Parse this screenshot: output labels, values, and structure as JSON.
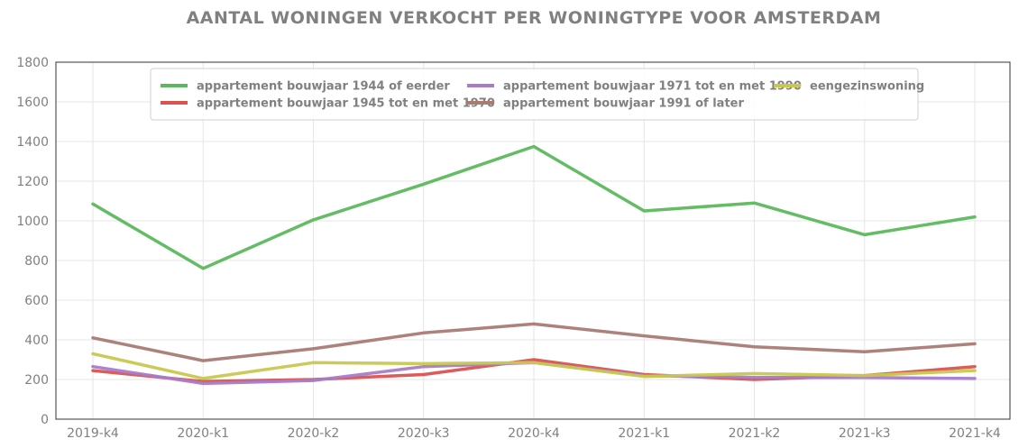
{
  "chart_data": {
    "type": "line",
    "title": "AANTAL WONINGEN VERKOCHT PER WONINGTYPE VOOR AMSTERDAM",
    "xlabel": "",
    "ylabel": "",
    "ylim": [
      0,
      1800
    ],
    "yticks": [
      "0",
      "200",
      "400",
      "600",
      "800",
      "1000",
      "1200",
      "1400",
      "1600",
      "1800"
    ],
    "categories": [
      "2019-k4",
      "2020-k1",
      "2020-k2",
      "2020-k3",
      "2020-k4",
      "2021-k1",
      "2021-k2",
      "2021-k3",
      "2021-k4"
    ],
    "grid": true,
    "legend_position": "top",
    "series": [
      {
        "name": "appartement bouwjaar 1944 of eerder",
        "color": "#5cb85c",
        "values": [
          1085,
          760,
          1005,
          1185,
          1375,
          1050,
          1090,
          930,
          1020
        ]
      },
      {
        "name": "appartement bouwjaar 1945 tot en met 1970",
        "color": "#d9534f",
        "values": [
          245,
          190,
          200,
          225,
          300,
          225,
          200,
          220,
          265
        ]
      },
      {
        "name": "appartement bouwjaar 1971 tot en met 1990",
        "color": "#a87cc9",
        "values": [
          265,
          180,
          195,
          265,
          285,
          220,
          210,
          210,
          205
        ]
      },
      {
        "name": "appartement bouwjaar 1991 of later",
        "color": "#a97b73",
        "values": [
          410,
          295,
          355,
          435,
          480,
          420,
          365,
          340,
          380
        ]
      },
      {
        "name": "eengezinswoning",
        "color": "#c8c850",
        "values": [
          330,
          205,
          285,
          280,
          285,
          215,
          230,
          220,
          245
        ]
      }
    ]
  }
}
